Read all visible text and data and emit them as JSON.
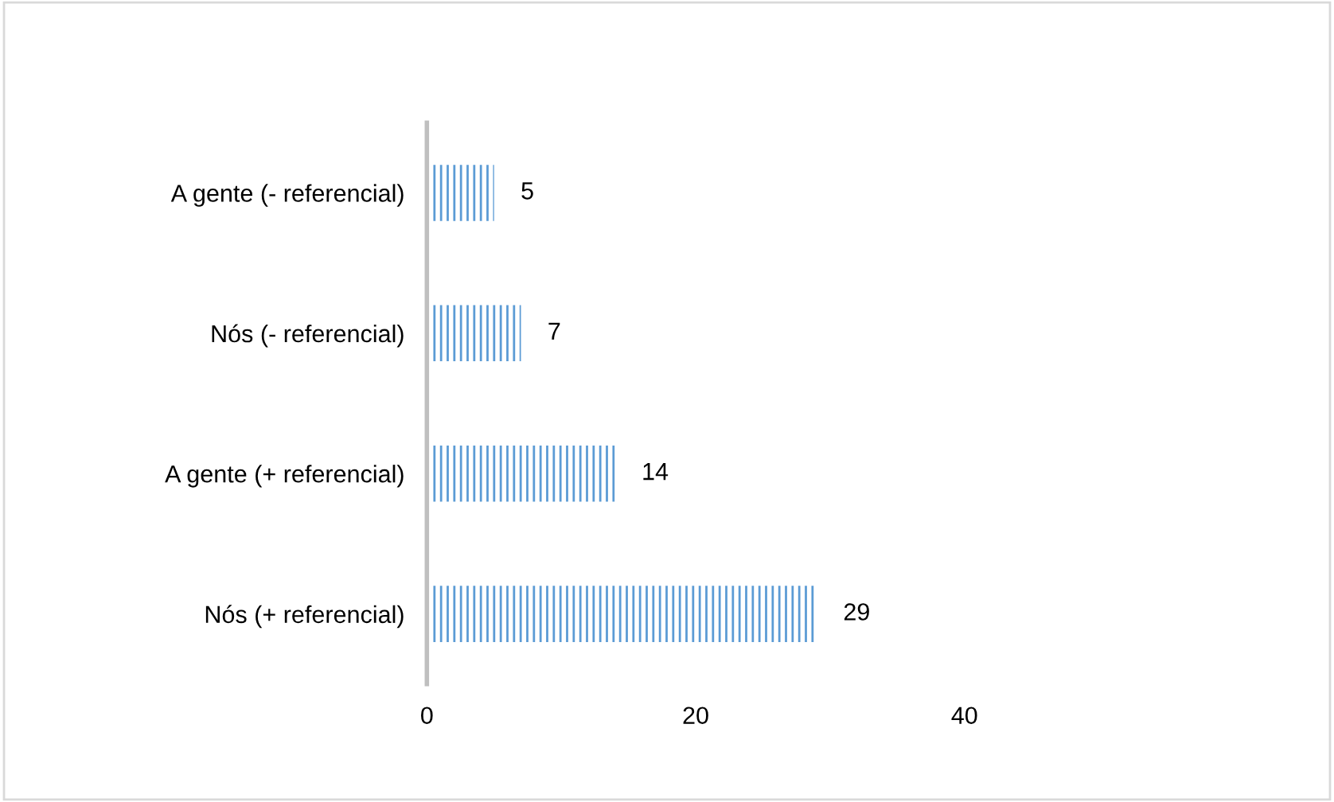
{
  "chart_data": {
    "type": "bar",
    "orientation": "horizontal",
    "categories": [
      "A gente (- referencial)",
      "Nós (- referencial)",
      "A gente (+ referencial)",
      "Nós (+ referencial)"
    ],
    "values": [
      5,
      7,
      14,
      29
    ],
    "color": "#5b9bd5",
    "xlim": [
      0,
      40
    ],
    "xticks": [
      0,
      20,
      40
    ],
    "grid": false,
    "legend": false,
    "data_labels": true
  }
}
